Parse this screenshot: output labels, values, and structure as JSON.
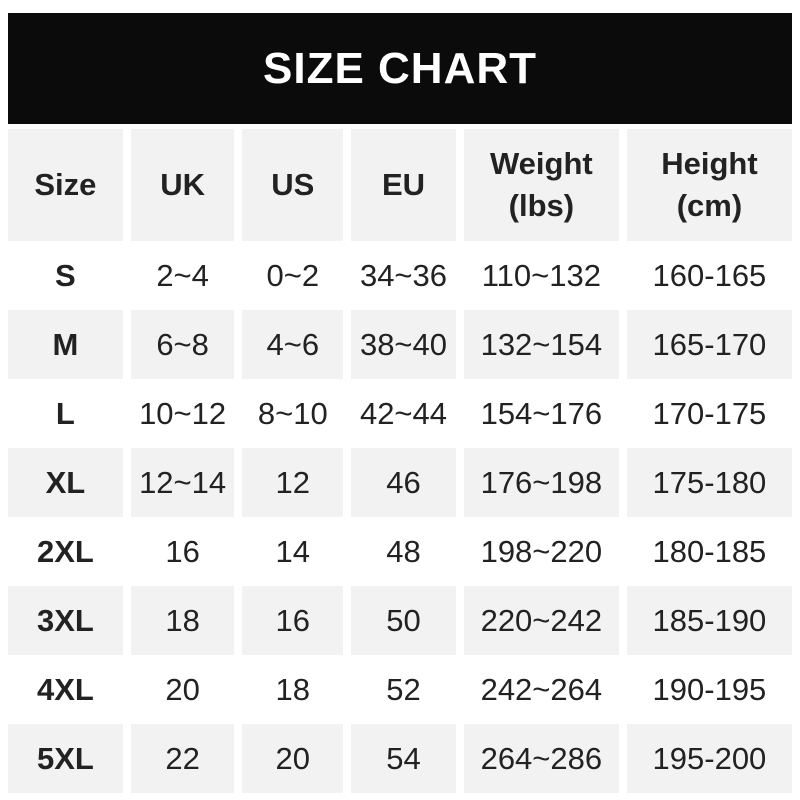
{
  "page": {
    "title": "SIZE CHART"
  },
  "colors": {
    "banner_bg": "#0b0b0b",
    "banner_text": "#ffffff",
    "alt_row_bg": "#f2f2f2",
    "row_bg": "#ffffff",
    "text": "#222222"
  },
  "chart_data": {
    "type": "table",
    "title": "SIZE CHART",
    "columns": [
      "Size",
      "UK",
      "US",
      "EU",
      "Weight (lbs)",
      "Height (cm)"
    ],
    "rows": [
      [
        "S",
        "2~4",
        "0~2",
        "34~36",
        "110~132",
        "160-165"
      ],
      [
        "M",
        "6~8",
        "4~6",
        "38~40",
        "132~154",
        "165-170"
      ],
      [
        "L",
        "10~12",
        "8~10",
        "42~44",
        "154~176",
        "170-175"
      ],
      [
        "XL",
        "12~14",
        "12",
        "46",
        "176~198",
        "175-180"
      ],
      [
        "2XL",
        "16",
        "14",
        "48",
        "198~220",
        "180-185"
      ],
      [
        "3XL",
        "18",
        "16",
        "50",
        "220~242",
        "185-190"
      ],
      [
        "4XL",
        "20",
        "18",
        "52",
        "242~264",
        "190-195"
      ],
      [
        "5XL",
        "22",
        "20",
        "54",
        "264~286",
        "195-200"
      ]
    ]
  }
}
